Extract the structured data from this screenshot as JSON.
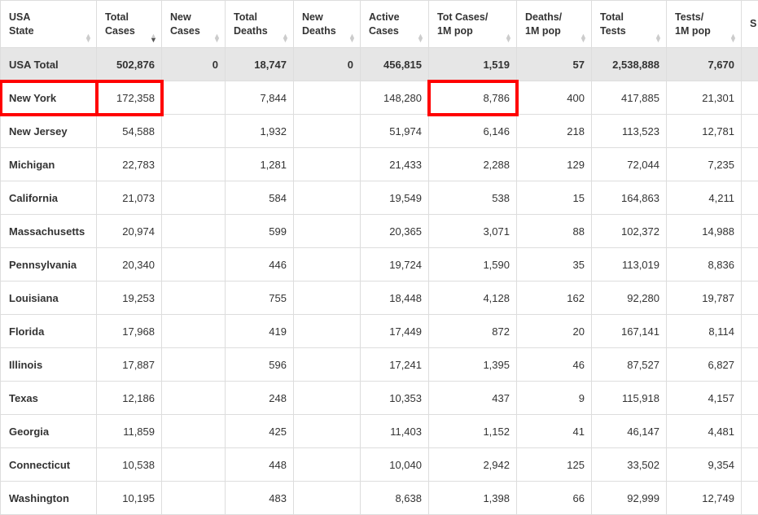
{
  "columns": [
    {
      "l1": "USA",
      "l2": "State",
      "cls": "state-col",
      "align": "left",
      "sort": "both"
    },
    {
      "l1": "Total",
      "l2": "Cases",
      "cls": "c1",
      "align": "right",
      "sort": "desc"
    },
    {
      "l1": "New",
      "l2": "Cases",
      "cls": "c2",
      "align": "right",
      "sort": "both"
    },
    {
      "l1": "Total",
      "l2": "Deaths",
      "cls": "c3",
      "align": "right",
      "sort": "both"
    },
    {
      "l1": "New",
      "l2": "Deaths",
      "cls": "c4",
      "align": "right",
      "sort": "both"
    },
    {
      "l1": "Active",
      "l2": "Cases",
      "cls": "c5",
      "align": "right",
      "sort": "both"
    },
    {
      "l1": "Tot Cases/",
      "l2": "1M pop",
      "cls": "c6",
      "align": "right",
      "sort": "both"
    },
    {
      "l1": "Deaths/",
      "l2": "1M pop",
      "cls": "c7",
      "align": "right",
      "sort": "both"
    },
    {
      "l1": "Total",
      "l2": "Tests",
      "cls": "c8",
      "align": "right",
      "sort": "both"
    },
    {
      "l1": "Tests/",
      "l2": "1M pop",
      "cls": "c9",
      "align": "right",
      "sort": "both"
    },
    {
      "l1": "S",
      "l2": "",
      "cls": "c10",
      "align": "left",
      "sort": "none"
    }
  ],
  "total_row": [
    "USA Total",
    "502,876",
    "0",
    "18,747",
    "0",
    "456,815",
    "1,519",
    "57",
    "2,538,888",
    "7,670",
    ""
  ],
  "highlights": {
    "row": 0,
    "cells": [
      0,
      1,
      6
    ]
  },
  "highlight_color": "#ff0000",
  "rows": [
    [
      "New York",
      "172,358",
      "",
      "7,844",
      "",
      "148,280",
      "8,786",
      "400",
      "417,885",
      "21,301",
      ""
    ],
    [
      "New Jersey",
      "54,588",
      "",
      "1,932",
      "",
      "51,974",
      "6,146",
      "218",
      "113,523",
      "12,781",
      ""
    ],
    [
      "Michigan",
      "22,783",
      "",
      "1,281",
      "",
      "21,433",
      "2,288",
      "129",
      "72,044",
      "7,235",
      ""
    ],
    [
      "California",
      "21,073",
      "",
      "584",
      "",
      "19,549",
      "538",
      "15",
      "164,863",
      "4,211",
      ""
    ],
    [
      "Massachusetts",
      "20,974",
      "",
      "599",
      "",
      "20,365",
      "3,071",
      "88",
      "102,372",
      "14,988",
      ""
    ],
    [
      "Pennsylvania",
      "20,340",
      "",
      "446",
      "",
      "19,724",
      "1,590",
      "35",
      "113,019",
      "8,836",
      ""
    ],
    [
      "Louisiana",
      "19,253",
      "",
      "755",
      "",
      "18,448",
      "4,128",
      "162",
      "92,280",
      "19,787",
      ""
    ],
    [
      "Florida",
      "17,968",
      "",
      "419",
      "",
      "17,449",
      "872",
      "20",
      "167,141",
      "8,114",
      ""
    ],
    [
      "Illinois",
      "17,887",
      "",
      "596",
      "",
      "17,241",
      "1,395",
      "46",
      "87,527",
      "6,827",
      ""
    ],
    [
      "Texas",
      "12,186",
      "",
      "248",
      "",
      "10,353",
      "437",
      "9",
      "115,918",
      "4,157",
      ""
    ],
    [
      "Georgia",
      "11,859",
      "",
      "425",
      "",
      "11,403",
      "1,152",
      "41",
      "46,147",
      "4,481",
      ""
    ],
    [
      "Connecticut",
      "10,538",
      "",
      "448",
      "",
      "10,040",
      "2,942",
      "125",
      "33,502",
      "9,354",
      ""
    ],
    [
      "Washington",
      "10,195",
      "",
      "483",
      "",
      "8,638",
      "1,398",
      "66",
      "92,999",
      "12,749",
      ""
    ]
  ],
  "style": {
    "total_bg": "#e6e6e6",
    "border": "#dddddd",
    "sort_inactive": "#cccccc",
    "sort_active": "#555555",
    "font_size_header": 12.5,
    "font_size_body": 13
  }
}
